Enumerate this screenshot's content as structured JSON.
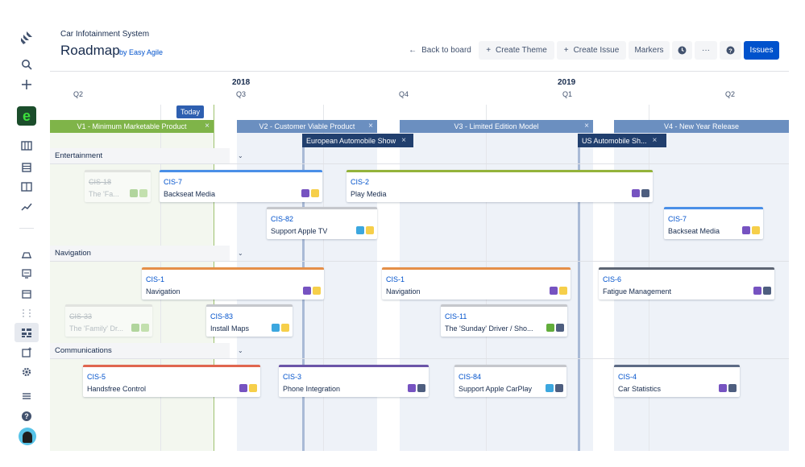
{
  "project": {
    "name": "Car Infotainment System",
    "title": "Roadmap",
    "byline": "by Easy Agile"
  },
  "toolbar": {
    "back": "Back to board",
    "create_theme": "Create Theme",
    "create_issue": "Create Issue",
    "markers": "Markers",
    "more": "···",
    "issues": "Issues"
  },
  "timeline": {
    "years": [
      "2018",
      "2019"
    ],
    "quarters": [
      "Q2",
      "Q3",
      "Q4",
      "Q1",
      "Q2"
    ],
    "today": "Today"
  },
  "versions": [
    {
      "label": "V1 - Minimum Marketable Product"
    },
    {
      "label": "V2 - Customer Viable Product"
    },
    {
      "label": "V3 - Limited Edition Model"
    },
    {
      "label": "V4 - New Year Release"
    }
  ],
  "markers": [
    {
      "label": "European Automobile Show"
    },
    {
      "label": "US Automobile Sh..."
    }
  ],
  "themes": [
    {
      "name": "Entertainment",
      "cards": [
        {
          "key": "CIS-18",
          "summary": "The 'Fa...",
          "faded": true,
          "color": "#cccccc",
          "badges": [
            "story",
            "green"
          ]
        },
        {
          "key": "CIS-7",
          "summary": "Backseat Media",
          "color": "#4a8fe7",
          "badges": [
            "epic",
            "yellow"
          ]
        },
        {
          "key": "CIS-2",
          "summary": "Play Media",
          "color": "#94b33b",
          "badges": [
            "epic",
            "slate"
          ]
        },
        {
          "key": "CIS-82",
          "summary": "Support Apple TV",
          "color": "#c5c7cc",
          "badges": [
            "task",
            "yellow"
          ]
        },
        {
          "key": "CIS-7",
          "summary": "Backseat Media",
          "color": "#4a8fe7",
          "badges": [
            "epic",
            "yellow"
          ]
        }
      ]
    },
    {
      "name": "Navigation",
      "cards": [
        {
          "key": "CIS-1",
          "summary": "Navigation",
          "color": "#e58f48",
          "badges": [
            "epic",
            "yellow"
          ]
        },
        {
          "key": "CIS-1",
          "summary": "Navigation",
          "color": "#e58f48",
          "badges": [
            "epic",
            "yellow"
          ]
        },
        {
          "key": "CIS-6",
          "summary": "Fatigue Management",
          "color": "#5d6573",
          "badges": [
            "epic",
            "slate"
          ]
        },
        {
          "key": "CIS-33",
          "summary": "The 'Family' Dr...",
          "faded": true,
          "color": "#cccccc",
          "badges": [
            "story",
            "green"
          ]
        },
        {
          "key": "CIS-83",
          "summary": "Install Maps",
          "color": "#c5c7cc",
          "badges": [
            "task",
            "yellow"
          ]
        },
        {
          "key": "CIS-11",
          "summary": "The 'Sunday' Driver / Sho...",
          "color": "#c5c7cc",
          "badges": [
            "story",
            "slate"
          ]
        }
      ]
    },
    {
      "name": "Communications",
      "cards": [
        {
          "key": "CIS-5",
          "summary": "Handsfree Control",
          "color": "#e0664f",
          "badges": [
            "epic",
            "yellow"
          ]
        },
        {
          "key": "CIS-3",
          "summary": "Phone Integration",
          "color": "#6b55a8",
          "badges": [
            "epic",
            "slate"
          ]
        },
        {
          "key": "CIS-84",
          "summary": "Support Apple CarPlay",
          "color": "#c5c7cc",
          "badges": [
            "task",
            "slate"
          ]
        },
        {
          "key": "CIS-4",
          "summary": "Car Statistics",
          "color": "#5d6b85",
          "badges": [
            "epic",
            "slate"
          ]
        }
      ]
    }
  ]
}
